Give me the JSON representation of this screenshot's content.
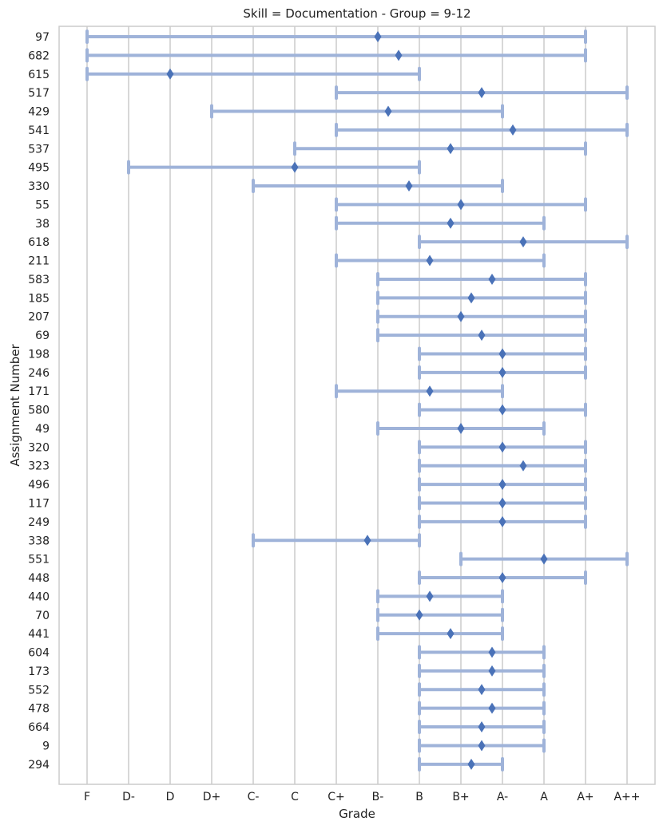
{
  "chart_data": {
    "type": "range-dot",
    "title": "Skill = Documentation - Group = 9-12",
    "xlabel": "Grade",
    "ylabel": "Assignment Number",
    "x_categories": [
      "F",
      "D-",
      "D",
      "D+",
      "C-",
      "C",
      "C+",
      "B-",
      "B",
      "B+",
      "A-",
      "A",
      "A+",
      "A++"
    ],
    "grid": "vertical",
    "colors": {
      "range": "#9fb3d9",
      "marker": "#4a72b8",
      "grid": "#cccccc",
      "frame": "#cccccc"
    },
    "rows": [
      {
        "label": "97",
        "min": 0,
        "max": 12,
        "mean": 7
      },
      {
        "label": "682",
        "min": 0,
        "max": 12,
        "mean": 7.5
      },
      {
        "label": "615",
        "min": 0,
        "max": 8,
        "mean": 2
      },
      {
        "label": "517",
        "min": 6,
        "max": 13,
        "mean": 9.5
      },
      {
        "label": "429",
        "min": 3,
        "max": 10,
        "mean": 7.25
      },
      {
        "label": "541",
        "min": 6,
        "max": 13,
        "mean": 10.25
      },
      {
        "label": "537",
        "min": 5,
        "max": 12,
        "mean": 8.75
      },
      {
        "label": "495",
        "min": 1,
        "max": 8,
        "mean": 5
      },
      {
        "label": "330",
        "min": 4,
        "max": 10,
        "mean": 7.75
      },
      {
        "label": "55",
        "min": 6,
        "max": 12,
        "mean": 9
      },
      {
        "label": "38",
        "min": 6,
        "max": 11,
        "mean": 8.75
      },
      {
        "label": "618",
        "min": 8,
        "max": 13,
        "mean": 10.5
      },
      {
        "label": "211",
        "min": 6,
        "max": 11,
        "mean": 8.25
      },
      {
        "label": "583",
        "min": 7,
        "max": 12,
        "mean": 9.75
      },
      {
        "label": "185",
        "min": 7,
        "max": 12,
        "mean": 9.25
      },
      {
        "label": "207",
        "min": 7,
        "max": 12,
        "mean": 9
      },
      {
        "label": "69",
        "min": 7,
        "max": 12,
        "mean": 9.5
      },
      {
        "label": "198",
        "min": 8,
        "max": 12,
        "mean": 10
      },
      {
        "label": "246",
        "min": 8,
        "max": 12,
        "mean": 10
      },
      {
        "label": "171",
        "min": 6,
        "max": 10,
        "mean": 8.25
      },
      {
        "label": "580",
        "min": 8,
        "max": 12,
        "mean": 10
      },
      {
        "label": "49",
        "min": 7,
        "max": 11,
        "mean": 9
      },
      {
        "label": "320",
        "min": 8,
        "max": 12,
        "mean": 10
      },
      {
        "label": "323",
        "min": 8,
        "max": 12,
        "mean": 10.5
      },
      {
        "label": "496",
        "min": 8,
        "max": 12,
        "mean": 10
      },
      {
        "label": "117",
        "min": 8,
        "max": 12,
        "mean": 10
      },
      {
        "label": "249",
        "min": 8,
        "max": 12,
        "mean": 10
      },
      {
        "label": "338",
        "min": 4,
        "max": 8,
        "mean": 6.75
      },
      {
        "label": "551",
        "min": 9,
        "max": 13,
        "mean": 11
      },
      {
        "label": "448",
        "min": 8,
        "max": 12,
        "mean": 10
      },
      {
        "label": "440",
        "min": 7,
        "max": 10,
        "mean": 8.25
      },
      {
        "label": "70",
        "min": 7,
        "max": 10,
        "mean": 8
      },
      {
        "label": "441",
        "min": 7,
        "max": 10,
        "mean": 8.75
      },
      {
        "label": "604",
        "min": 8,
        "max": 11,
        "mean": 9.75
      },
      {
        "label": "173",
        "min": 8,
        "max": 11,
        "mean": 9.75
      },
      {
        "label": "552",
        "min": 8,
        "max": 11,
        "mean": 9.5
      },
      {
        "label": "478",
        "min": 8,
        "max": 11,
        "mean": 9.75
      },
      {
        "label": "664",
        "min": 8,
        "max": 11,
        "mean": 9.5
      },
      {
        "label": "9",
        "min": 8,
        "max": 11,
        "mean": 9.5
      },
      {
        "label": "294",
        "min": 8,
        "max": 10,
        "mean": 9.25
      }
    ]
  }
}
